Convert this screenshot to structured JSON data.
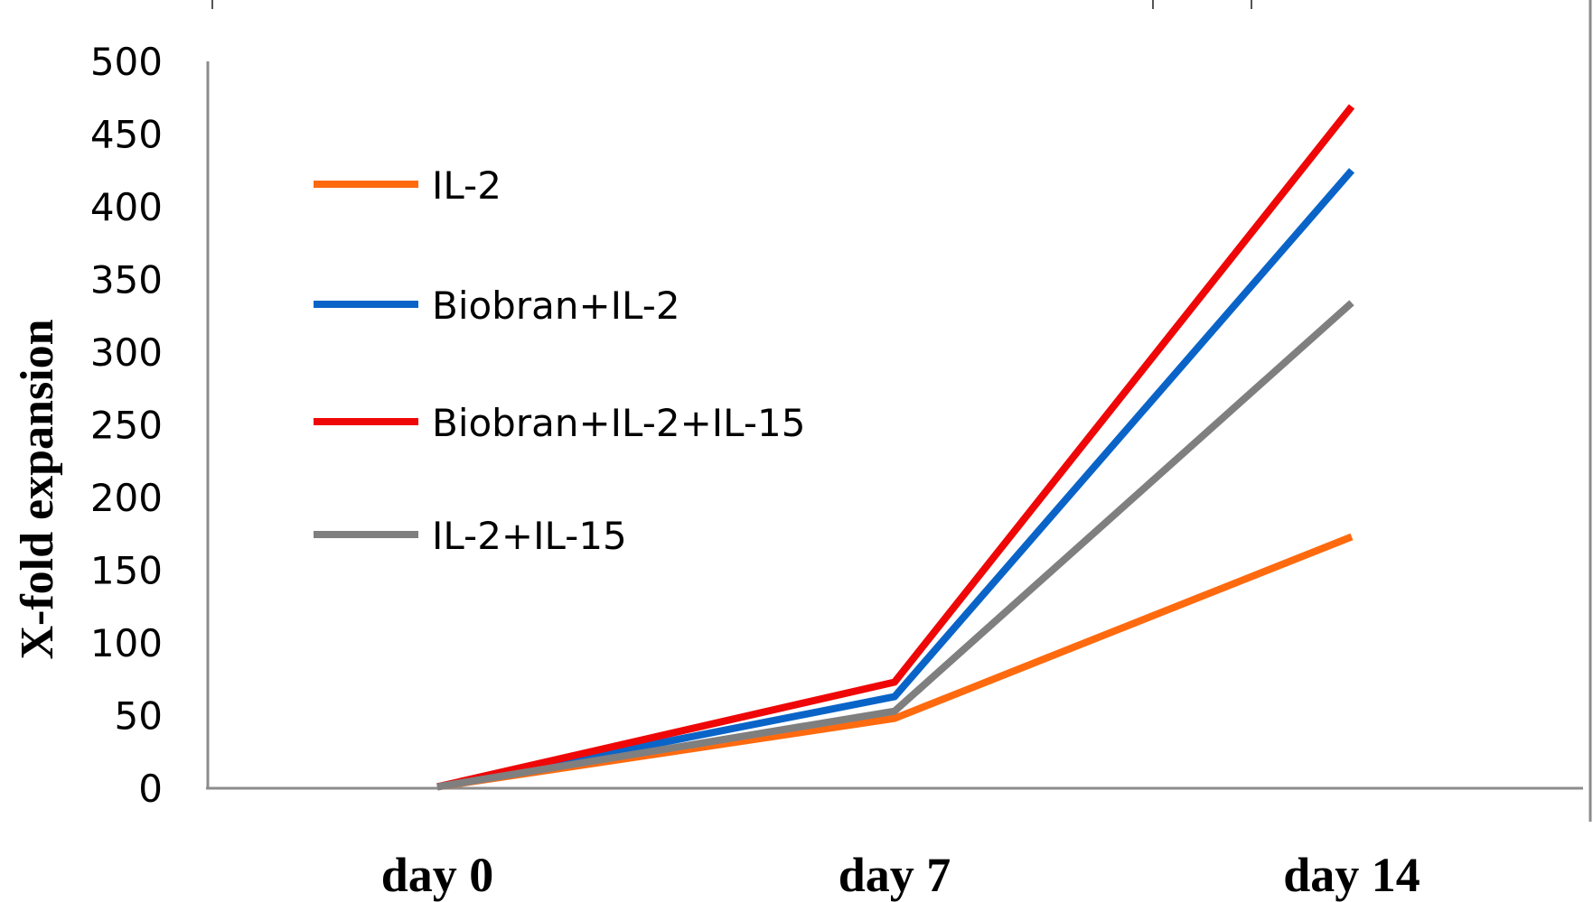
{
  "chart_data": {
    "type": "line",
    "categories": [
      "day 0",
      "day 7",
      "day 14"
    ],
    "ylabel": "X-fold expansion",
    "xlabel": "",
    "ylim": [
      0,
      500
    ],
    "yticks": [
      0,
      50,
      100,
      150,
      200,
      250,
      300,
      350,
      400,
      450,
      500
    ],
    "grid": false,
    "legend_position": "upper-left",
    "series": [
      {
        "name": "IL-2",
        "color": "#ff6a0f",
        "values": [
          1,
          48,
          173
        ]
      },
      {
        "name": "Biobran+IL-2",
        "color": "#0a64c8",
        "values": [
          1,
          63,
          425
        ]
      },
      {
        "name": "Biobran+IL-2+IL-15",
        "color": "#ef0707",
        "values": [
          1,
          73,
          469
        ]
      },
      {
        "name": "IL-2+IL-15",
        "color": "#7f7f7f",
        "values": [
          1,
          53,
          334
        ]
      }
    ]
  }
}
